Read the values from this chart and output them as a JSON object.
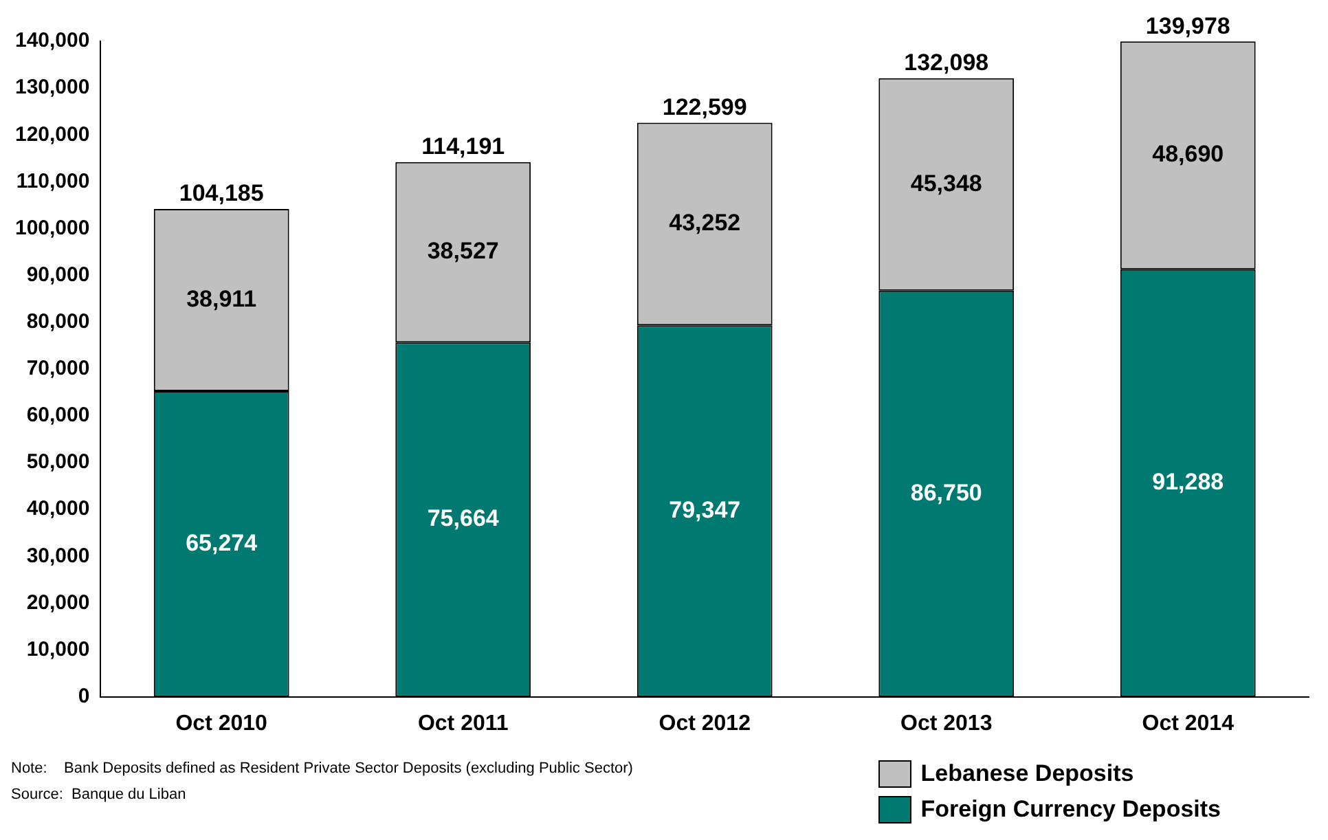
{
  "chart_data": {
    "type": "bar",
    "stacked": true,
    "categories": [
      "Oct 2010",
      "Oct 2011",
      "Oct 2012",
      "Oct 2013",
      "Oct 2014"
    ],
    "series": [
      {
        "name": "Foreign Currency Deposits",
        "color": "#007a70",
        "values": [
          65274,
          75664,
          79347,
          86750,
          91288
        ],
        "value_labels": [
          "65,274",
          "75,664",
          "79,347",
          "86,750",
          "91,288"
        ]
      },
      {
        "name": "Lebanese Deposits",
        "color": "#c0c0c0",
        "values": [
          38911,
          38527,
          43252,
          45348,
          48690
        ],
        "value_labels": [
          "38,911",
          "38,527",
          "43,252",
          "45,348",
          "48,690"
        ]
      }
    ],
    "totals": [
      "104,185",
      "114,191",
      "122,599",
      "132,098",
      "139,978"
    ],
    "ylim": [
      0,
      140000
    ],
    "yticks": [
      0,
      {
        "value": 10000,
        "label": "10,000"
      },
      {
        "value": 20000,
        "label": "20,000"
      },
      {
        "value": 30000,
        "label": "30,000"
      },
      {
        "value": 40000,
        "label": "40,000"
      },
      {
        "value": 50000,
        "label": "50,000"
      },
      {
        "value": 60000,
        "label": "60,000"
      },
      {
        "value": 70000,
        "label": "70,000"
      },
      {
        "value": 80000,
        "label": "80,000"
      },
      {
        "value": 90000,
        "label": "90,000"
      },
      {
        "value": 100000,
        "label": "100,000"
      },
      {
        "value": 110000,
        "label": "110,000"
      },
      {
        "value": 120000,
        "label": "120,000"
      },
      {
        "value": 130000,
        "label": "130,000"
      },
      {
        "value": 140000,
        "label": "140,000"
      }
    ],
    "grid": false,
    "legend": "bottom right",
    "annotations": [
      "Note:    Bank Deposits defined as Resident Private Sector Deposits (excluding Public Sector)",
      "Source:  Banque du Liban"
    ]
  }
}
